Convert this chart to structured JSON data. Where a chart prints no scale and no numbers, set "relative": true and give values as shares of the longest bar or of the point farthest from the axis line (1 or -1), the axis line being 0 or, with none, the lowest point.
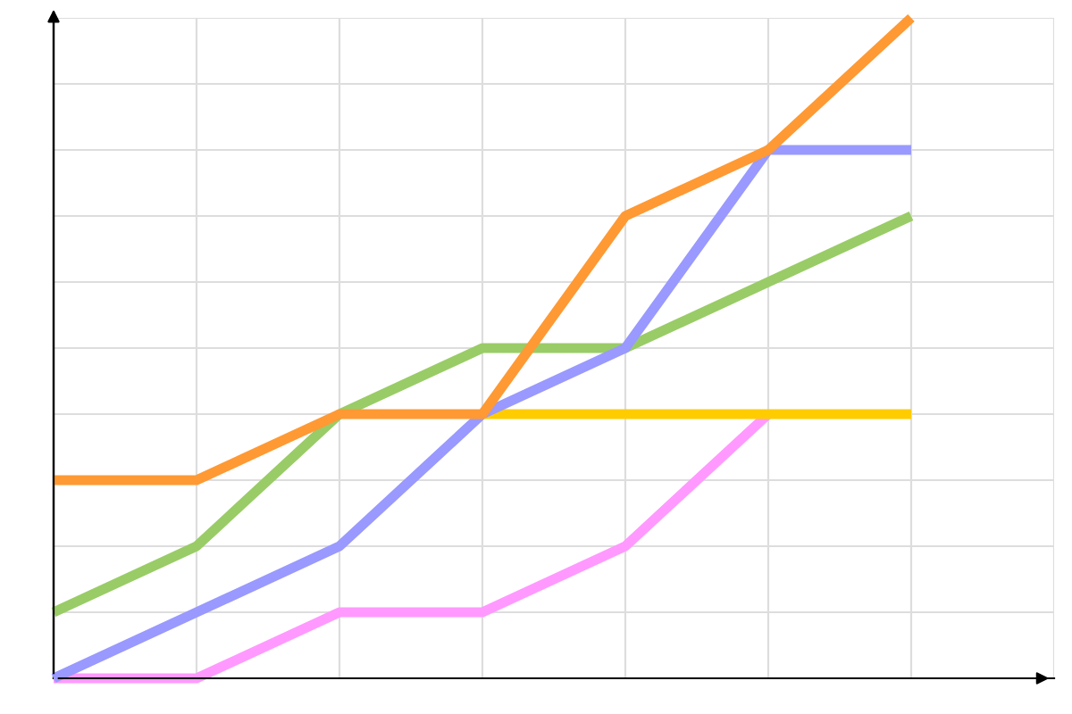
{
  "chart_data": {
    "type": "line",
    "relative": true,
    "grid": true,
    "tick_labels": false,
    "legend": false,
    "marker": "none",
    "line_style": "solid",
    "categories": [
      null,
      null,
      null,
      null,
      null,
      null,
      null
    ],
    "series": [
      {
        "color": "#ff99ff",
        "values": [
          0,
          0,
          0.1,
          0.1,
          0.2,
          0.4,
          null
        ]
      },
      {
        "color": "#ffcc00",
        "values": [
          null,
          null,
          null,
          0.4,
          0.4,
          0.4,
          0.4
        ]
      },
      {
        "color": "#99cc66",
        "values": [
          0.1,
          0.2,
          0.4,
          0.5,
          0.5,
          0.6,
          0.7
        ]
      },
      {
        "color": "#9999ff",
        "values": [
          0,
          0.1,
          0.2,
          0.4,
          0.5,
          0.8,
          0.8
        ]
      },
      {
        "color": "#ff9933",
        "values": [
          0.3,
          0.3,
          0.4,
          0.4,
          0.7,
          0.8,
          1.0
        ]
      }
    ]
  }
}
